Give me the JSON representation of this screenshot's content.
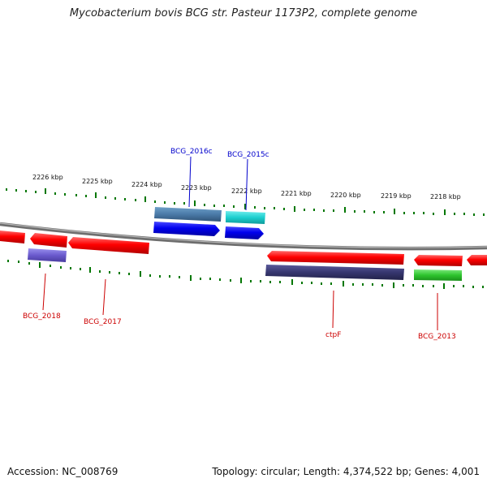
{
  "title": "Mycobacterium bovis BCG str. Pasteur 1173P2, complete genome",
  "footer": {
    "accession": "Accession: NC_008769",
    "summary": "Topology: circular; Length: 4,374,522 bp; Genes: 4,001"
  },
  "ticks": [
    "2226 kbp",
    "2225 kbp",
    "2224 kbp",
    "2223 kbp",
    "2222 kbp",
    "2221 kbp",
    "2220 kbp",
    "2219 kbp",
    "2218 kbp"
  ],
  "genes": {
    "bcg_2016c": "BCG_2016c",
    "bcg_2015c": "BCG_2015c",
    "bcg_2018": "BCG_2018",
    "bcg_2017": "BCG_2017",
    "ctpf": "ctpF",
    "bcg_2013": "BCG_2013"
  },
  "colors": {
    "forward_label": "#0000cc",
    "reverse_label": "#cc0000",
    "ticks": "#007700",
    "backbone": "#808080"
  }
}
